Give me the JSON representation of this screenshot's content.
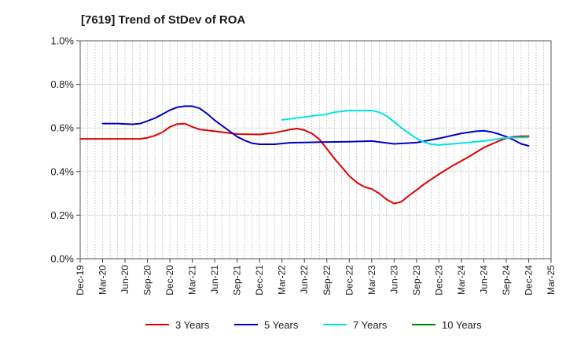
{
  "chart_data": {
    "type": "line",
    "title": "[7619]  Trend of StDev of ROA",
    "xlabel": "",
    "ylabel": "",
    "ylim": [
      0,
      1.0
    ],
    "yticks": [
      "0.0%",
      "0.2%",
      "0.4%",
      "0.6%",
      "0.8%",
      "1.0%"
    ],
    "xticks": [
      "Dec-19",
      "Mar-20",
      "Jun-20",
      "Sep-20",
      "Dec-20",
      "Mar-21",
      "Jun-21",
      "Sep-21",
      "Dec-21",
      "Mar-22",
      "Jun-22",
      "Sep-22",
      "Dec-22",
      "Mar-23",
      "Jun-23",
      "Sep-23",
      "Dec-23",
      "Mar-24",
      "Jun-24",
      "Sep-24",
      "Dec-24",
      "Mar-25"
    ],
    "grid": true,
    "legend_position": "bottom",
    "series": [
      {
        "name": "3 Years",
        "color": "#e00000",
        "points": [
          [
            "Dec-19",
            0.55
          ],
          [
            "Mar-20",
            0.55
          ],
          [
            "Jun-20",
            0.55
          ],
          [
            "Aug-20",
            0.55
          ],
          [
            "Sep-20",
            0.555
          ],
          [
            "Oct-20",
            0.565
          ],
          [
            "Nov-20",
            0.58
          ],
          [
            "Dec-20",
            0.605
          ],
          [
            "Jan-21",
            0.618
          ],
          [
            "Feb-21",
            0.62
          ],
          [
            "Mar-21",
            0.605
          ],
          [
            "Apr-21",
            0.593
          ],
          [
            "Jun-21",
            0.585
          ],
          [
            "Sep-21",
            0.572
          ],
          [
            "Dec-21",
            0.57
          ],
          [
            "Feb-22",
            0.578
          ],
          [
            "Apr-22",
            0.592
          ],
          [
            "May-22",
            0.597
          ],
          [
            "Jun-22",
            0.59
          ],
          [
            "Jul-22",
            0.575
          ],
          [
            "Aug-22",
            0.548
          ],
          [
            "Sep-22",
            0.505
          ],
          [
            "Oct-22",
            0.46
          ],
          [
            "Nov-22",
            0.42
          ],
          [
            "Dec-22",
            0.38
          ],
          [
            "Jan-23",
            0.35
          ],
          [
            "Feb-23",
            0.33
          ],
          [
            "Mar-23",
            0.32
          ],
          [
            "Apr-23",
            0.3
          ],
          [
            "May-23",
            0.272
          ],
          [
            "Jun-23",
            0.253
          ],
          [
            "Jul-23",
            0.262
          ],
          [
            "Aug-23",
            0.29
          ],
          [
            "Sep-23",
            0.315
          ],
          [
            "Oct-23",
            0.342
          ],
          [
            "Nov-23",
            0.365
          ],
          [
            "Dec-23",
            0.388
          ],
          [
            "Feb-24",
            0.43
          ],
          [
            "Apr-24",
            0.468
          ],
          [
            "Jun-24",
            0.51
          ],
          [
            "Aug-24",
            0.54
          ],
          [
            "Sep-24",
            0.553
          ],
          [
            "Oct-24",
            0.56
          ],
          [
            "Nov-24",
            0.562
          ],
          [
            "Dec-24",
            0.562
          ]
        ]
      },
      {
        "name": "5 Years",
        "color": "#0000cc",
        "points": [
          [
            "Mar-20",
            0.62
          ],
          [
            "May-20",
            0.62
          ],
          [
            "Jul-20",
            0.617
          ],
          [
            "Aug-20",
            0.62
          ],
          [
            "Sep-20",
            0.632
          ],
          [
            "Oct-20",
            0.645
          ],
          [
            "Nov-20",
            0.663
          ],
          [
            "Dec-20",
            0.682
          ],
          [
            "Jan-21",
            0.695
          ],
          [
            "Feb-21",
            0.7
          ],
          [
            "Mar-21",
            0.7
          ],
          [
            "Apr-21",
            0.69
          ],
          [
            "May-21",
            0.665
          ],
          [
            "Jun-21",
            0.635
          ],
          [
            "Jul-21",
            0.61
          ],
          [
            "Aug-21",
            0.585
          ],
          [
            "Sep-21",
            0.56
          ],
          [
            "Oct-21",
            0.543
          ],
          [
            "Nov-21",
            0.53
          ],
          [
            "Dec-21",
            0.525
          ],
          [
            "Feb-22",
            0.525
          ],
          [
            "Apr-22",
            0.532
          ],
          [
            "Aug-22",
            0.535
          ],
          [
            "Dec-22",
            0.537
          ],
          [
            "Mar-23",
            0.54
          ],
          [
            "Jun-23",
            0.527
          ],
          [
            "Sep-23",
            0.533
          ],
          [
            "Dec-23",
            0.552
          ],
          [
            "Mar-24",
            0.575
          ],
          [
            "May-24",
            0.585
          ],
          [
            "Jun-24",
            0.587
          ],
          [
            "Jul-24",
            0.582
          ],
          [
            "Aug-24",
            0.572
          ],
          [
            "Sep-24",
            0.56
          ],
          [
            "Oct-24",
            0.545
          ],
          [
            "Nov-24",
            0.527
          ],
          [
            "Dec-24",
            0.518
          ]
        ]
      },
      {
        "name": "7 Years",
        "color": "#00e5e5",
        "points": [
          [
            "Mar-22",
            0.637
          ],
          [
            "Jun-22",
            0.65
          ],
          [
            "Sep-22",
            0.663
          ],
          [
            "Oct-22",
            0.672
          ],
          [
            "Dec-22",
            0.68
          ],
          [
            "Mar-23",
            0.68
          ],
          [
            "Apr-23",
            0.672
          ],
          [
            "May-23",
            0.655
          ],
          [
            "Jun-23",
            0.628
          ],
          [
            "Jul-23",
            0.6
          ],
          [
            "Aug-23",
            0.575
          ],
          [
            "Sep-23",
            0.552
          ],
          [
            "Oct-23",
            0.535
          ],
          [
            "Nov-23",
            0.525
          ],
          [
            "Dec-23",
            0.522
          ],
          [
            "Mar-24",
            0.53
          ],
          [
            "Jun-24",
            0.54
          ],
          [
            "Sep-24",
            0.555
          ],
          [
            "Dec-24",
            0.557
          ]
        ]
      },
      {
        "name": "10 Years",
        "color": "#008000",
        "points": []
      }
    ]
  }
}
